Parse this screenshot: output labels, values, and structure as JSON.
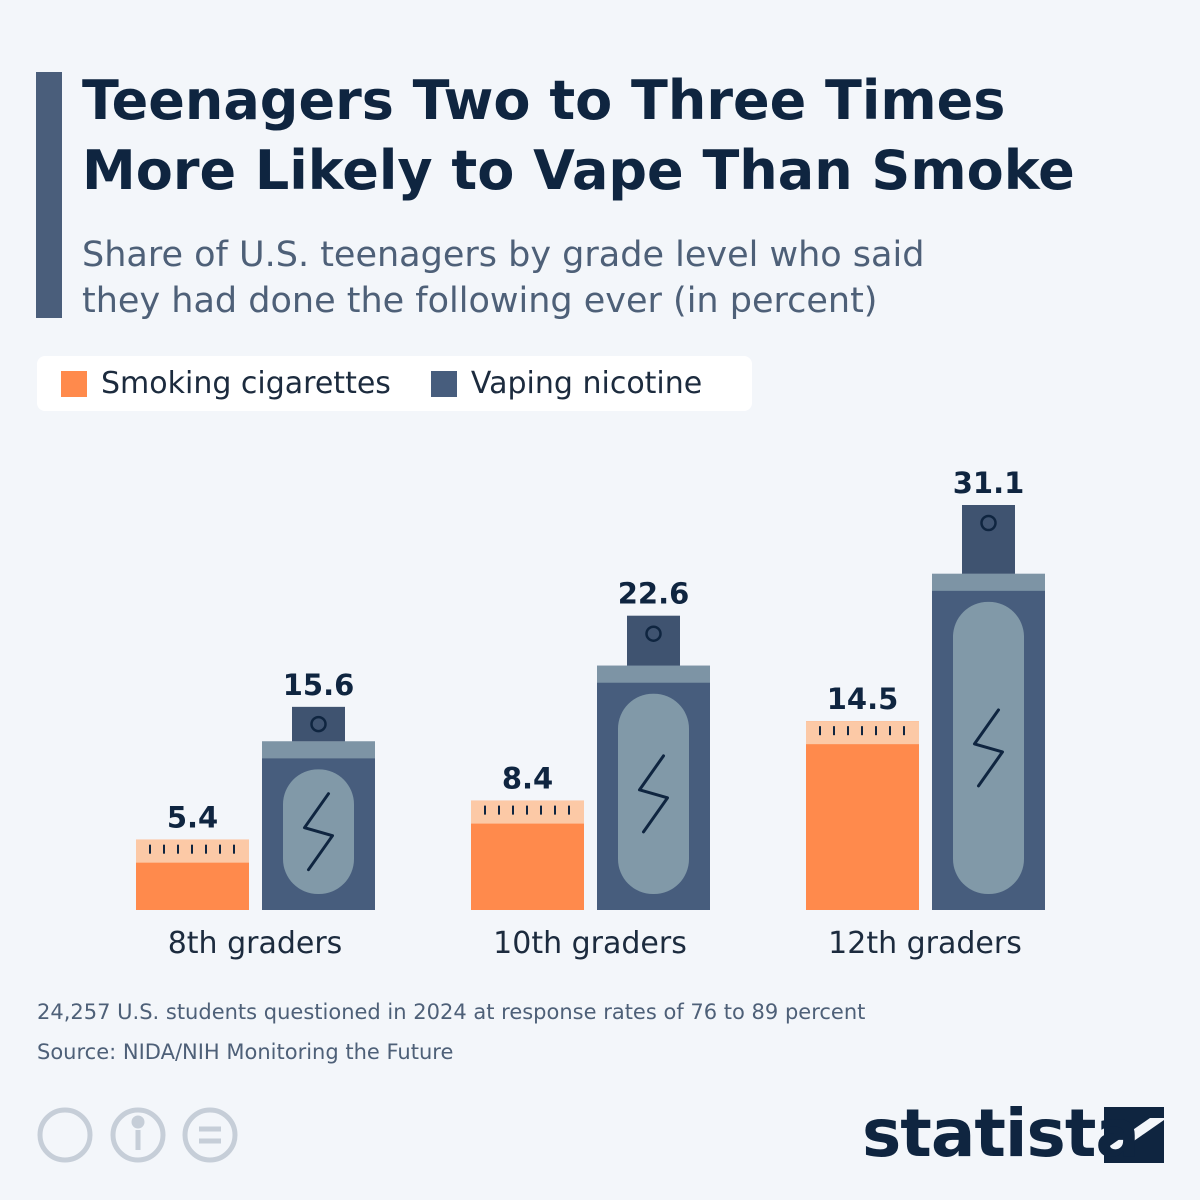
{
  "chart_data": {
    "type": "bar",
    "title": "Teenagers Two to Three Times More Likely to Vape Than Smoke",
    "subtitle": "Share of U.S. teenagers by grade level who said they had done the following ever (in percent)",
    "categories": [
      "8th graders",
      "10th graders",
      "12th graders"
    ],
    "series": [
      {
        "name": "Smoking cigarettes",
        "color": "#ff8a4c",
        "values": [
          5.4,
          8.4,
          14.5
        ]
      },
      {
        "name": "Vaping nicotine",
        "color": "#475d7d",
        "values": [
          15.6,
          22.6,
          31.1
        ]
      }
    ],
    "note": "24,257 U.S. students questioned in 2024 at response rates of 76 to 89 percent",
    "source": "Source: NIDA/NIH Monitoring the Future",
    "brand": "statista"
  }
}
